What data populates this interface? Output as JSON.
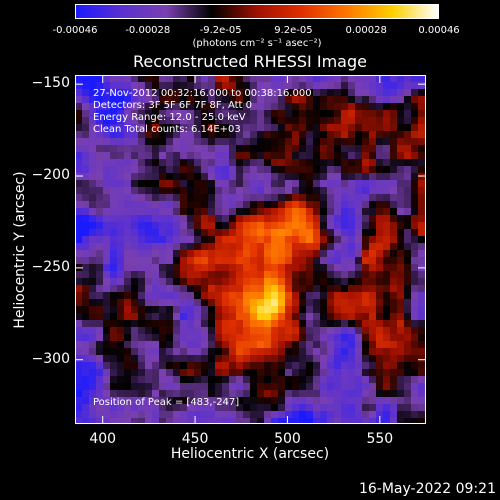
{
  "colorbar": {
    "ticks": [
      "-0.00046",
      "-0.00028",
      "-9.2e-05",
      "9.2e-05",
      "0.00028",
      "0.00046"
    ],
    "units": "(photons cm⁻² s⁻¹ asec⁻²)"
  },
  "chart_data": {
    "type": "heatmap",
    "title": "Reconstructed RHESSI Image",
    "xlabel": "Heliocentric X (arcsec)",
    "ylabel": "Heliocentric Y (arcsec)",
    "x_ticks": [
      400,
      450,
      500,
      550
    ],
    "y_ticks": [
      -150,
      -200,
      -250,
      -300
    ],
    "xlim": [
      385,
      575
    ],
    "ylim": [
      -335,
      -145
    ],
    "color_range": [
      -0.00046,
      0.00046
    ],
    "colormap": [
      "#1a1aff",
      "#5a30d0",
      "#7a40b0",
      "#000000",
      "#a01000",
      "#e03000",
      "#ff7800",
      "#ffd000",
      "#ffffff"
    ],
    "peak": [
      483,
      -247
    ],
    "annotations": [
      "27-Nov-2012 00:32:16.000 to 00:38:16.000",
      "Detectors: 3F 5F 6F 7F 8F, Att 0",
      "Energy Range: 12.0 - 25.0 keV",
      "Clean    Total counts: 6.14E+03",
      "Position of Peak = [483,-247]"
    ]
  },
  "footer": "16-May-2022 09:21"
}
